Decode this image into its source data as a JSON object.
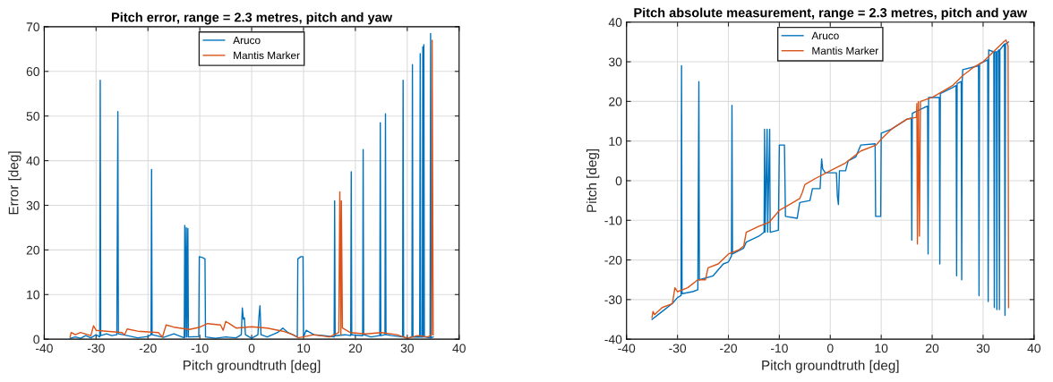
{
  "chart_data": [
    {
      "type": "line",
      "title": "Pitch error, range = 2.3 metres, pitch and yaw",
      "xlabel": "Pitch groundtruth [deg]",
      "ylabel": "Error [deg]",
      "xlim": [
        -40,
        40
      ],
      "xticks": [
        -40,
        -30,
        -20,
        -10,
        0,
        10,
        20,
        30,
        40
      ],
      "ylim": [
        0,
        70
      ],
      "yticks": [
        0,
        10,
        20,
        30,
        40,
        50,
        60,
        70
      ],
      "grid": true,
      "legend": "top",
      "series": [
        {
          "name": "Aruco",
          "color": "#0072bd",
          "x": [
            -35,
            -34,
            -33,
            -32,
            -31,
            -30,
            -29.3,
            -29.2,
            -29.1,
            -28,
            -27,
            -26,
            -25.8,
            -25.7,
            -24,
            -22,
            -20,
            -19.4,
            -19.3,
            -19.2,
            -17,
            -15,
            -13,
            -12.9,
            -12.8,
            -12.6,
            -12.5,
            -12.3,
            -12.2,
            -10.2,
            -10.1,
            -9.5,
            -9,
            -8.9,
            -7,
            -5,
            -3,
            -2,
            -1.8,
            -1.6,
            -1.4,
            -1.2,
            0,
            1.2,
            1.4,
            1.6,
            1.8,
            3,
            5,
            6,
            7,
            8.8,
            8.9,
            9.5,
            9.9,
            10,
            10.5,
            12,
            14,
            15.9,
            16,
            16.1,
            18,
            19.1,
            19.2,
            19.3,
            21.4,
            21.5,
            21.6,
            23,
            24.7,
            24.8,
            24.9,
            25.7,
            25.8,
            25.9,
            27,
            29.1,
            29.2,
            29.3,
            30,
            30.9,
            31,
            31.1,
            32.4,
            32.5,
            32.6,
            32.9,
            33,
            33.1,
            33.2,
            33.3,
            34.4,
            34.5,
            34.6,
            35
          ],
          "values": [
            0.2,
            0.5,
            0.2,
            0.8,
            0.3,
            1.0,
            0.5,
            58,
            0.8,
            1.2,
            0.8,
            1.0,
            51,
            1.2,
            0.8,
            0.3,
            0.6,
            1.0,
            38,
            1.0,
            0.4,
            1.2,
            0.3,
            25.5,
            0.5,
            25,
            0.5,
            24.8,
            0.5,
            0.6,
            18.5,
            18.3,
            18,
            0.5,
            0.2,
            0.5,
            0.3,
            1,
            7,
            4.5,
            4.8,
            1,
            0.2,
            1,
            5,
            7.5,
            1,
            0.5,
            1.5,
            2.5,
            1.5,
            0.5,
            18,
            18.5,
            18.5,
            0.5,
            2,
            1,
            0.8,
            0.5,
            31,
            0.8,
            1,
            0.8,
            37.5,
            1,
            0.8,
            42.5,
            1,
            0.5,
            0.8,
            48.5,
            0.8,
            1,
            50.5,
            1,
            0.8,
            0.5,
            58,
            0.5,
            0.2,
            0.5,
            61.5,
            0.5,
            0.5,
            64,
            0.5,
            0.5,
            65.5,
            0.5,
            66,
            0.5,
            0.3,
            68.5,
            0.3,
            0.5
          ]
        },
        {
          "name": "Mantis Marker",
          "color": "#d95319",
          "x": [
            -35,
            -34.8,
            -34,
            -33,
            -31,
            -30.5,
            -30,
            -28,
            -25,
            -24.5,
            -24,
            -22,
            -18,
            -17.2,
            -16.5,
            -15,
            -12,
            -10,
            -8.5,
            -6,
            -5.5,
            -5,
            -3,
            0,
            3,
            6,
            8,
            9,
            12,
            15,
            16.8,
            17,
            17.2,
            17.3,
            17.5,
            19,
            22,
            25,
            28,
            30,
            32,
            34,
            34.7,
            34.8,
            35
          ],
          "values": [
            0.5,
            1.5,
            1,
            1.5,
            0.8,
            3,
            2,
            1.8,
            1.5,
            1,
            2.3,
            1.8,
            1.5,
            0.5,
            3.2,
            2.7,
            2.2,
            2.7,
            3.5,
            3.2,
            2,
            4,
            2.5,
            2.8,
            2.5,
            1.8,
            1,
            0.3,
            1,
            0.5,
            1.5,
            33,
            1,
            31,
            2.5,
            1.5,
            1.2,
            1.5,
            1,
            0.2,
            0.8,
            0.5,
            1,
            67,
            1
          ]
        }
      ]
    },
    {
      "type": "line",
      "title": "Pitch absolute measurement, range = 2.3 metres, pitch and yaw",
      "xlabel": "Pitch groundtruth [deg]",
      "ylabel": "Pitch [deg]",
      "xlim": [
        -40,
        40
      ],
      "xticks": [
        -40,
        -30,
        -20,
        -10,
        0,
        10,
        20,
        30,
        40
      ],
      "ylim": [
        -40,
        40
      ],
      "yticks": [
        -40,
        -30,
        -20,
        -10,
        0,
        10,
        20,
        30,
        40
      ],
      "grid": true,
      "legend": "top",
      "series": [
        {
          "name": "Aruco",
          "color": "#0072bd",
          "x": [
            -35,
            -33,
            -31,
            -30,
            -29.3,
            -29.2,
            -29.1,
            -27,
            -26,
            -25.8,
            -25.7,
            -23,
            -21,
            -20,
            -19.4,
            -19.3,
            -19.2,
            -17,
            -16.5,
            -14,
            -13,
            -12.9,
            -12.8,
            -12.4,
            -12.3,
            -11.9,
            -11.8,
            -10.2,
            -10,
            -9,
            -8.8,
            -6.5,
            -6,
            -4,
            -3.5,
            -2,
            -1.7,
            -1.5,
            -1,
            1.2,
            1.4,
            1.6,
            1.8,
            3,
            3.5,
            5,
            6,
            8.8,
            8.9,
            9.9,
            10,
            12,
            15,
            15.9,
            16,
            16.1,
            18.5,
            19.1,
            19.2,
            19.3,
            21.4,
            21.5,
            21.6,
            24,
            24.7,
            24.8,
            24.9,
            25.7,
            25.8,
            25.9,
            26,
            29.1,
            29.2,
            29.3,
            30.9,
            31,
            31.1,
            32.1,
            32.2,
            32.3,
            32.6,
            32.7,
            32.8,
            33.1,
            33.2,
            33.3,
            34.2,
            34.3,
            34.4,
            35
          ],
          "values": [
            -35,
            -33,
            -31,
            -29.5,
            -29,
            29,
            -28.5,
            -28,
            -27.5,
            25,
            -25,
            -24,
            -21,
            -20.5,
            -19,
            19,
            -18.5,
            -17,
            -15.5,
            -14,
            -13,
            13,
            -13,
            13,
            -13,
            13,
            -13,
            -12.5,
            9,
            9,
            -9,
            -9.5,
            -5.5,
            -5,
            -2,
            -2,
            5.5,
            3,
            2,
            2,
            -4,
            -6,
            2.5,
            2.5,
            5,
            6,
            9,
            9.3,
            -9,
            -9,
            12,
            13,
            15.5,
            15.8,
            -15,
            17,
            18.5,
            18.8,
            -18.5,
            21,
            21,
            -21,
            22,
            23.5,
            24,
            -24,
            24.5,
            25,
            -25,
            25,
            28,
            29,
            -29,
            29.5,
            30.5,
            -30.5,
            33,
            32.5,
            -32,
            32.5,
            32.5,
            -32.5,
            32.5,
            33,
            -32.5,
            33,
            34.5,
            -34,
            34.5,
            35
          ]
        },
        {
          "name": "Mantis Marker",
          "color": "#d95319",
          "x": [
            -35,
            -34.8,
            -34.5,
            -33,
            -31,
            -30.5,
            -30,
            -28,
            -26,
            -24.5,
            -24,
            -22,
            -20,
            -18,
            -17,
            -16.5,
            -14,
            -12,
            -10,
            -8,
            -6,
            -5.5,
            -5,
            -3,
            0,
            3,
            6,
            9,
            10,
            12,
            15,
            16.9,
            17,
            17.1,
            17.3,
            17.5,
            17.7,
            20,
            22,
            24,
            26,
            28,
            30,
            32,
            34,
            34.5,
            34.9,
            35
          ],
          "values": [
            -34.5,
            -33,
            -33.8,
            -32,
            -31,
            -27,
            -28,
            -27,
            -25,
            -25,
            -22,
            -21,
            -18.5,
            -17.5,
            -16.5,
            -13,
            -11.5,
            -10.5,
            -7.5,
            -6,
            -4.5,
            -3,
            -1,
            0.5,
            2.5,
            4.5,
            7.5,
            9,
            10.5,
            13,
            15.5,
            16,
            19.5,
            -16,
            20,
            -14,
            20,
            21,
            22.5,
            24,
            26.5,
            28.5,
            30,
            32.5,
            35,
            35.5,
            34,
            -32
          ]
        }
      ]
    }
  ]
}
